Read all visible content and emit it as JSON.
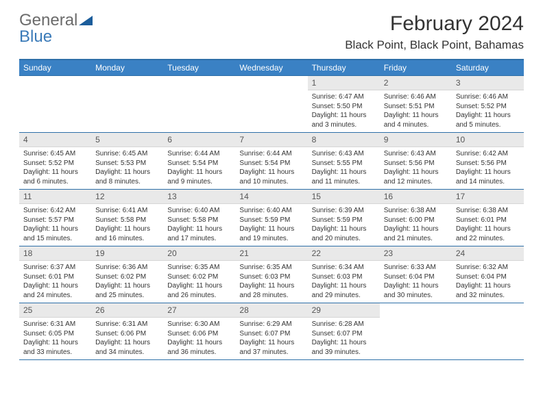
{
  "logo": {
    "text1": "General",
    "text2": "Blue"
  },
  "title": "February 2024",
  "location": "Black Point, Black Point, Bahamas",
  "colors": {
    "header_bg": "#3a81c4",
    "header_text": "#ffffff",
    "border": "#2d6fa8",
    "daynum_bg": "#e9e9e9",
    "text": "#333333",
    "logo_gray": "#6b6b6b",
    "logo_blue": "#3a7ab8"
  },
  "weekdays": [
    "Sunday",
    "Monday",
    "Tuesday",
    "Wednesday",
    "Thursday",
    "Friday",
    "Saturday"
  ],
  "weeks": [
    [
      null,
      null,
      null,
      null,
      {
        "n": "1",
        "sunrise": "6:47 AM",
        "sunset": "5:50 PM",
        "daylight": "11 hours and 3 minutes."
      },
      {
        "n": "2",
        "sunrise": "6:46 AM",
        "sunset": "5:51 PM",
        "daylight": "11 hours and 4 minutes."
      },
      {
        "n": "3",
        "sunrise": "6:46 AM",
        "sunset": "5:52 PM",
        "daylight": "11 hours and 5 minutes."
      }
    ],
    [
      {
        "n": "4",
        "sunrise": "6:45 AM",
        "sunset": "5:52 PM",
        "daylight": "11 hours and 6 minutes."
      },
      {
        "n": "5",
        "sunrise": "6:45 AM",
        "sunset": "5:53 PM",
        "daylight": "11 hours and 8 minutes."
      },
      {
        "n": "6",
        "sunrise": "6:44 AM",
        "sunset": "5:54 PM",
        "daylight": "11 hours and 9 minutes."
      },
      {
        "n": "7",
        "sunrise": "6:44 AM",
        "sunset": "5:54 PM",
        "daylight": "11 hours and 10 minutes."
      },
      {
        "n": "8",
        "sunrise": "6:43 AM",
        "sunset": "5:55 PM",
        "daylight": "11 hours and 11 minutes."
      },
      {
        "n": "9",
        "sunrise": "6:43 AM",
        "sunset": "5:56 PM",
        "daylight": "11 hours and 12 minutes."
      },
      {
        "n": "10",
        "sunrise": "6:42 AM",
        "sunset": "5:56 PM",
        "daylight": "11 hours and 14 minutes."
      }
    ],
    [
      {
        "n": "11",
        "sunrise": "6:42 AM",
        "sunset": "5:57 PM",
        "daylight": "11 hours and 15 minutes."
      },
      {
        "n": "12",
        "sunrise": "6:41 AM",
        "sunset": "5:58 PM",
        "daylight": "11 hours and 16 minutes."
      },
      {
        "n": "13",
        "sunrise": "6:40 AM",
        "sunset": "5:58 PM",
        "daylight": "11 hours and 17 minutes."
      },
      {
        "n": "14",
        "sunrise": "6:40 AM",
        "sunset": "5:59 PM",
        "daylight": "11 hours and 19 minutes."
      },
      {
        "n": "15",
        "sunrise": "6:39 AM",
        "sunset": "5:59 PM",
        "daylight": "11 hours and 20 minutes."
      },
      {
        "n": "16",
        "sunrise": "6:38 AM",
        "sunset": "6:00 PM",
        "daylight": "11 hours and 21 minutes."
      },
      {
        "n": "17",
        "sunrise": "6:38 AM",
        "sunset": "6:01 PM",
        "daylight": "11 hours and 22 minutes."
      }
    ],
    [
      {
        "n": "18",
        "sunrise": "6:37 AM",
        "sunset": "6:01 PM",
        "daylight": "11 hours and 24 minutes."
      },
      {
        "n": "19",
        "sunrise": "6:36 AM",
        "sunset": "6:02 PM",
        "daylight": "11 hours and 25 minutes."
      },
      {
        "n": "20",
        "sunrise": "6:35 AM",
        "sunset": "6:02 PM",
        "daylight": "11 hours and 26 minutes."
      },
      {
        "n": "21",
        "sunrise": "6:35 AM",
        "sunset": "6:03 PM",
        "daylight": "11 hours and 28 minutes."
      },
      {
        "n": "22",
        "sunrise": "6:34 AM",
        "sunset": "6:03 PM",
        "daylight": "11 hours and 29 minutes."
      },
      {
        "n": "23",
        "sunrise": "6:33 AM",
        "sunset": "6:04 PM",
        "daylight": "11 hours and 30 minutes."
      },
      {
        "n": "24",
        "sunrise": "6:32 AM",
        "sunset": "6:04 PM",
        "daylight": "11 hours and 32 minutes."
      }
    ],
    [
      {
        "n": "25",
        "sunrise": "6:31 AM",
        "sunset": "6:05 PM",
        "daylight": "11 hours and 33 minutes."
      },
      {
        "n": "26",
        "sunrise": "6:31 AM",
        "sunset": "6:06 PM",
        "daylight": "11 hours and 34 minutes."
      },
      {
        "n": "27",
        "sunrise": "6:30 AM",
        "sunset": "6:06 PM",
        "daylight": "11 hours and 36 minutes."
      },
      {
        "n": "28",
        "sunrise": "6:29 AM",
        "sunset": "6:07 PM",
        "daylight": "11 hours and 37 minutes."
      },
      {
        "n": "29",
        "sunrise": "6:28 AM",
        "sunset": "6:07 PM",
        "daylight": "11 hours and 39 minutes."
      },
      null,
      null
    ]
  ],
  "labels": {
    "sunrise": "Sunrise:",
    "sunset": "Sunset:",
    "daylight": "Daylight:"
  }
}
